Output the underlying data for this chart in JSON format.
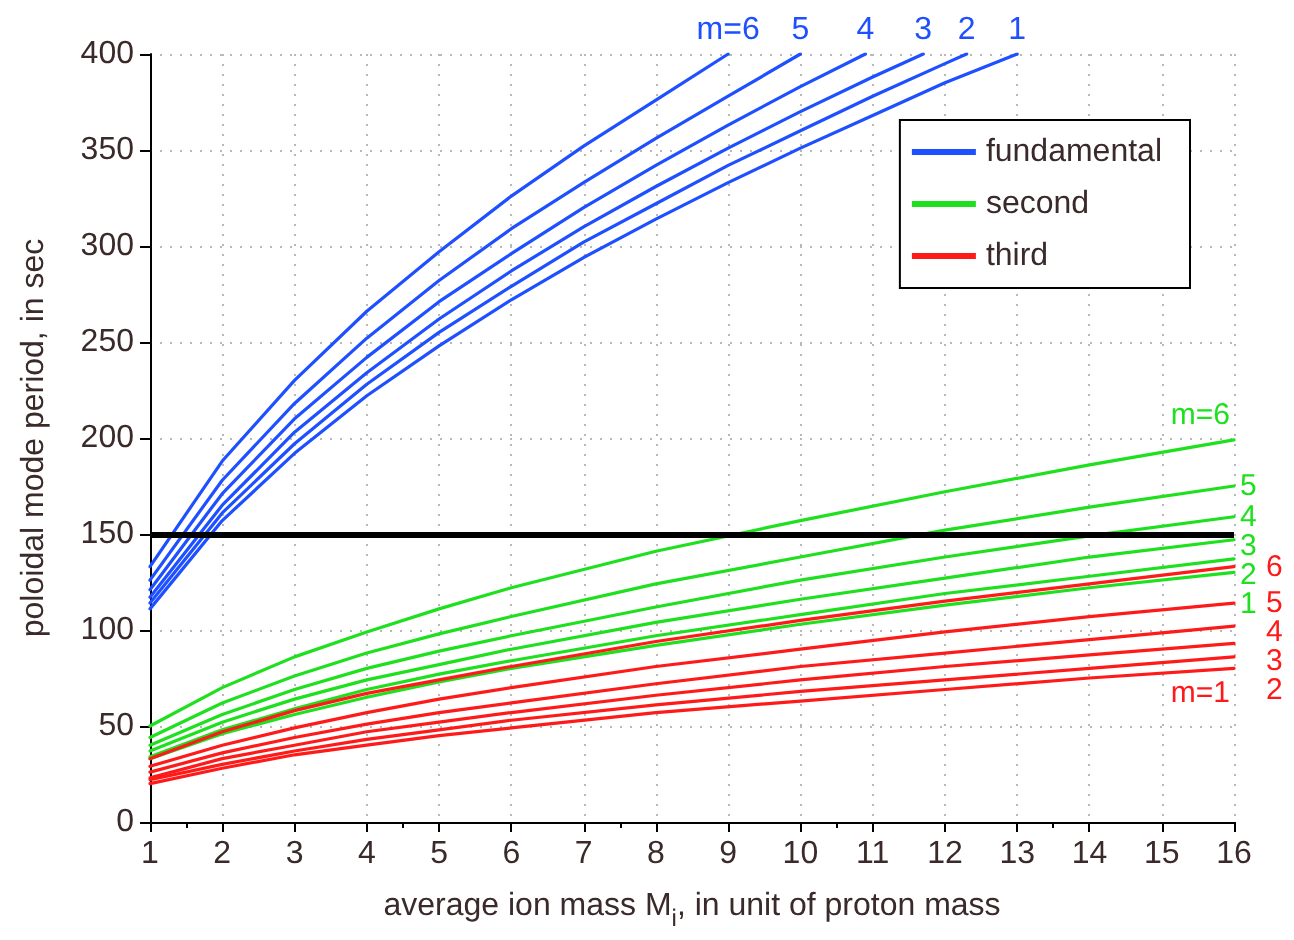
{
  "chart_data": {
    "type": "line",
    "xlabel": "average ion mass M$_{i}$, in unit of proton mass",
    "ylabel": "poloidal mode period, in sec",
    "x": [
      1,
      2,
      3,
      4,
      5,
      6,
      8,
      10,
      12,
      14,
      16
    ],
    "xlim": [
      1,
      16
    ],
    "xticks": [
      1,
      2,
      3,
      4,
      5,
      6,
      7,
      8,
      9,
      10,
      11,
      12,
      13,
      14,
      15,
      16
    ],
    "ylim": [
      0,
      400
    ],
    "yticks": [
      0,
      50,
      100,
      150,
      200,
      250,
      300,
      350,
      400
    ],
    "grid": true,
    "legend": "top right",
    "marker": "none",
    "line_style": "solid",
    "series": [
      {
        "name": "fundamental",
        "color": "#1e50ff",
        "x": [
          1,
          2,
          3,
          4,
          5,
          6,
          7,
          8,
          9
        ],
        "values": [
          133,
          188,
          230,
          266,
          297,
          326,
          352,
          376,
          400
        ]
      },
      {
        "color": "#1e50ff",
        "x": [
          1,
          2,
          3,
          4,
          5,
          6,
          7,
          8,
          9,
          10
        ],
        "values": [
          126,
          178,
          218,
          252,
          282,
          309,
          333,
          356,
          378,
          400
        ]
      },
      {
        "color": "#1e50ff",
        "x": [
          1,
          2,
          3,
          4,
          5,
          6,
          7,
          8,
          9,
          10,
          10.9
        ],
        "values": [
          121,
          171,
          210,
          242,
          271,
          296,
          320,
          342,
          363,
          383,
          400
        ]
      },
      {
        "color": "#1e50ff",
        "x": [
          1,
          2,
          3,
          4,
          5,
          6,
          7,
          8,
          9,
          10,
          11,
          11.7
        ],
        "values": [
          117,
          165,
          203,
          234,
          262,
          287,
          310,
          331,
          351,
          370,
          388,
          400
        ]
      },
      {
        "color": "#1e50ff",
        "x": [
          1,
          2,
          3,
          4,
          5,
          6,
          7,
          8,
          9,
          10,
          11,
          12,
          12.3
        ],
        "values": [
          114,
          161,
          197,
          228,
          255,
          279,
          302,
          322,
          342,
          360,
          378,
          395,
          400
        ]
      },
      {
        "color": "#1e50ff",
        "x": [
          1,
          2,
          3,
          4,
          5,
          6,
          7,
          8,
          9,
          10,
          11,
          12,
          13
        ],
        "values": [
          111,
          157,
          192,
          222,
          248,
          272,
          294,
          314,
          333,
          351,
          368,
          385,
          400
        ]
      },
      {
        "name": "second",
        "color": "#1fe01f",
        "values": [
          50,
          70,
          86,
          99,
          111,
          122,
          141,
          157,
          172,
          186,
          199
        ]
      },
      {
        "color": "#1fe01f",
        "values": [
          44,
          62,
          76,
          88,
          98,
          107,
          124,
          138,
          152,
          164,
          175
        ]
      },
      {
        "color": "#1fe01f",
        "values": [
          40,
          56,
          69,
          80,
          89,
          97,
          112,
          126,
          138,
          149,
          159
        ]
      },
      {
        "color": "#1fe01f",
        "values": [
          37,
          52,
          64,
          74,
          82,
          90,
          104,
          116,
          127,
          138,
          147
        ]
      },
      {
        "color": "#1fe01f",
        "values": [
          34,
          48,
          59,
          69,
          77,
          84,
          97,
          108,
          119,
          128,
          137
        ]
      },
      {
        "color": "#1fe01f",
        "values": [
          33,
          46,
          56,
          65,
          73,
          80,
          92,
          103,
          113,
          122,
          130
        ]
      },
      {
        "name": "third",
        "color": "#ff1a1a",
        "values": [
          33,
          47,
          58,
          67,
          74,
          81,
          94,
          105,
          115,
          124,
          133
        ]
      },
      {
        "color": "#ff1a1a",
        "values": [
          29,
          40,
          49,
          57,
          64,
          70,
          81,
          90,
          99,
          107,
          114
        ]
      },
      {
        "color": "#ff1a1a",
        "values": [
          26,
          36,
          44,
          51,
          57,
          62,
          72,
          81,
          88,
          95,
          102
        ]
      },
      {
        "color": "#ff1a1a",
        "values": [
          23,
          33,
          40,
          47,
          52,
          57,
          66,
          74,
          81,
          87,
          93
        ]
      },
      {
        "color": "#ff1a1a",
        "values": [
          22,
          30,
          37,
          43,
          48,
          53,
          61,
          68,
          74,
          80,
          86
        ]
      },
      {
        "color": "#ff1a1a",
        "values": [
          20,
          28,
          35,
          40,
          45,
          49,
          57,
          63,
          69,
          75,
          80
        ]
      }
    ],
    "ref_lines": [
      {
        "axis": "y",
        "value": 150,
        "color": "#000000"
      }
    ],
    "annotations": [
      {
        "text": "m=6",
        "x": 9,
        "y": 400
      },
      {
        "text": "5",
        "x": 10,
        "y": 400
      },
      {
        "text": "4",
        "x": 10.9,
        "y": 400
      },
      {
        "text": "3",
        "x": 11.7,
        "y": 400
      },
      {
        "text": "2",
        "x": 12.3,
        "y": 400
      },
      {
        "text": "1",
        "x": 13,
        "y": 400
      },
      {
        "text": "m=6",
        "x": 16,
        "y": 199
      },
      {
        "text": "5",
        "x": 16,
        "y": 175
      },
      {
        "text": "4",
        "x": 16,
        "y": 159
      },
      {
        "text": "3",
        "x": 16,
        "y": 147
      },
      {
        "text": "2",
        "x": 16,
        "y": 137
      },
      {
        "text": "1",
        "x": 16,
        "y": 130
      },
      {
        "text": "6",
        "x": 16,
        "y": 133
      },
      {
        "text": "5",
        "x": 16,
        "y": 114
      },
      {
        "text": "4",
        "x": 16,
        "y": 102
      },
      {
        "text": "3",
        "x": 16,
        "y": 93
      },
      {
        "text": "2",
        "x": 16,
        "y": 86
      },
      {
        "text": "m=1",
        "x": 16,
        "y": 80
      }
    ]
  }
}
